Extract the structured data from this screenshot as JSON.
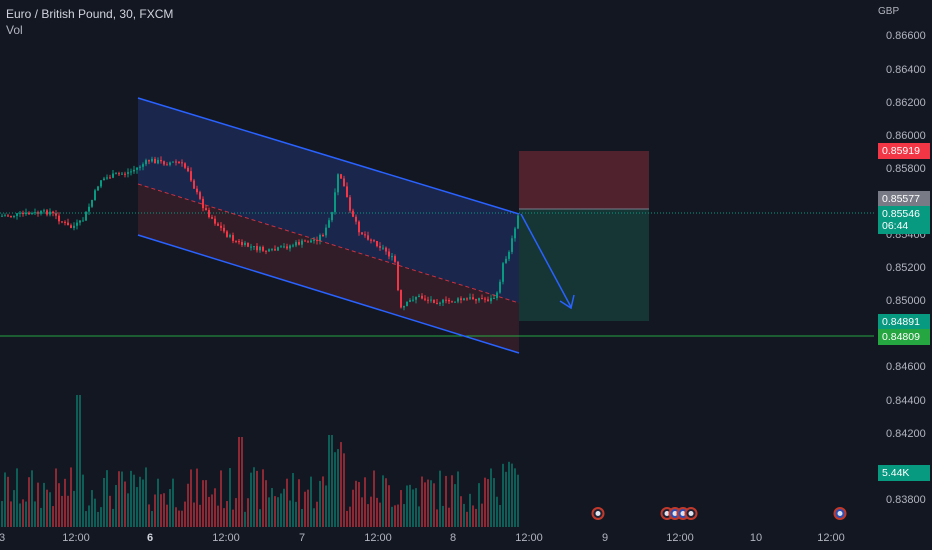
{
  "legend": {
    "symbol": "Euro / British Pound, 30, FXCM",
    "indicator": "Vol"
  },
  "price_axis": {
    "currency": "GBP",
    "ticks": [
      "0.86600",
      "0.86400",
      "0.86200",
      "0.86000",
      "0.85800",
      "0.85400",
      "0.85200",
      "0.85000",
      "0.84600",
      "0.84400",
      "0.84200",
      "0.83800"
    ]
  },
  "price_labels": {
    "stop": {
      "value": "0.85919",
      "color": "#f23645"
    },
    "entry": {
      "value": "0.85577",
      "color": "#787b86"
    },
    "last": {
      "value": "0.85546",
      "countdown": "06:44",
      "color": "#089981"
    },
    "target": {
      "value": "0.84891",
      "color": "#089981"
    },
    "support": {
      "value": "0.84809",
      "color": "#26a641"
    },
    "volume": {
      "value": "5.44K",
      "color": "#089981"
    }
  },
  "time_axis": {
    "ticks": [
      {
        "label": "3",
        "bold": false
      },
      {
        "label": "12:00",
        "bold": false
      },
      {
        "label": "6",
        "bold": true
      },
      {
        "label": "12:00",
        "bold": false
      },
      {
        "label": "7",
        "bold": false
      },
      {
        "label": "12:00",
        "bold": false
      },
      {
        "label": "8",
        "bold": false
      },
      {
        "label": "12:00",
        "bold": false
      },
      {
        "label": "9",
        "bold": false
      },
      {
        "label": "12:00",
        "bold": false
      },
      {
        "label": "10",
        "bold": false
      },
      {
        "label": "12:00",
        "bold": false
      }
    ],
    "events": [
      "uk-flag-icon",
      "uk-flag-icon",
      "eu-flag-icon",
      "eu-flag-icon",
      "uk-flag-icon",
      "eu-flag-icon"
    ]
  },
  "colors": {
    "background": "#131722",
    "up": "#089981",
    "down": "#f23645",
    "channel_line": "#2962ff"
  }
}
